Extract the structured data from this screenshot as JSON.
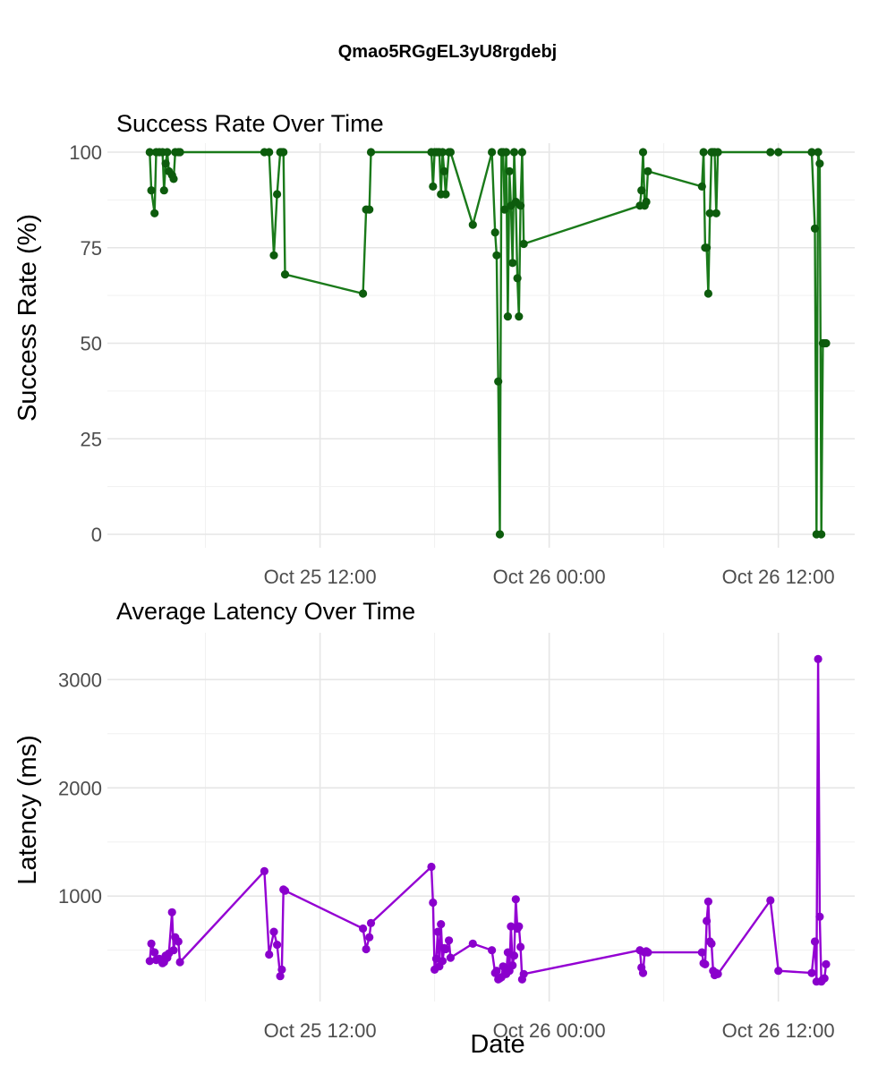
{
  "page": {
    "title": "Qmao5RGgEL3yU8rgdebj"
  },
  "chart_data": [
    {
      "type": "line",
      "title": "Success Rate Over Time",
      "xlabel": "",
      "ylabel": "Success Rate (%)",
      "ylim": [
        0,
        100
      ],
      "yticks": [
        0,
        25,
        50,
        75,
        100
      ],
      "xlim": [
        "2025-10-25 01:20",
        "2025-10-26 16:00"
      ],
      "xticks": [
        {
          "label": "Oct 25 12:00",
          "t": "2025-10-25 12:00"
        },
        {
          "label": "Oct 26 00:00",
          "t": "2025-10-26 00:00"
        },
        {
          "label": "Oct 26 12:00",
          "t": "2025-10-26 12:00"
        }
      ],
      "grid": true,
      "legend": "none",
      "color": "#1a7a1a",
      "point_color": "#0d5c0d",
      "series": [
        {
          "x": [
            "2025-10-25 03:05",
            "2025-10-25 03:10",
            "2025-10-25 03:20",
            "2025-10-25 03:25",
            "2025-10-25 03:35",
            "2025-10-25 03:45",
            "2025-10-25 03:50",
            "2025-10-25 03:55",
            "2025-10-25 04:00",
            "2025-10-25 04:05",
            "2025-10-25 04:15",
            "2025-10-25 04:20",
            "2025-10-25 04:25",
            "2025-10-25 04:35",
            "2025-10-25 04:40",
            "2025-10-25 09:05",
            "2025-10-25 09:20",
            "2025-10-25 09:35",
            "2025-10-25 09:45",
            "2025-10-25 09:55",
            "2025-10-25 10:00",
            "2025-10-25 10:05",
            "2025-10-25 10:10",
            "2025-10-25 14:15",
            "2025-10-25 14:25",
            "2025-10-25 14:35",
            "2025-10-25 14:40",
            "2025-10-25 17:50",
            "2025-10-25 17:55",
            "2025-10-25 18:00",
            "2025-10-25 18:05",
            "2025-10-25 18:10",
            "2025-10-25 18:15",
            "2025-10-25 18:20",
            "2025-10-25 18:25",
            "2025-10-25 18:30",
            "2025-10-25 18:35",
            "2025-10-25 18:45",
            "2025-10-25 18:50",
            "2025-10-25 20:00",
            "2025-10-25 21:00",
            "2025-10-25 21:10",
            "2025-10-25 21:15",
            "2025-10-25 21:20",
            "2025-10-25 21:25",
            "2025-10-25 21:30",
            "2025-10-25 21:35",
            "2025-10-25 21:40",
            "2025-10-25 21:45",
            "2025-10-25 21:50",
            "2025-10-25 21:55",
            "2025-10-25 22:00",
            "2025-10-25 22:05",
            "2025-10-25 22:10",
            "2025-10-25 22:15",
            "2025-10-25 22:20",
            "2025-10-25 22:25",
            "2025-10-25 22:30",
            "2025-10-25 22:35",
            "2025-10-25 22:40",
            "2025-10-26 04:45",
            "2025-10-26 04:50",
            "2025-10-26 04:55",
            "2025-10-26 05:00",
            "2025-10-26 05:05",
            "2025-10-26 05:10",
            "2025-10-26 08:00",
            "2025-10-26 08:05",
            "2025-10-26 08:10",
            "2025-10-26 08:15",
            "2025-10-26 08:20",
            "2025-10-26 08:25",
            "2025-10-26 08:30",
            "2025-10-26 08:35",
            "2025-10-26 08:40",
            "2025-10-26 08:45",
            "2025-10-26 08:50",
            "2025-10-26 11:35",
            "2025-10-26 12:00",
            "2025-10-26 13:45",
            "2025-10-26 13:55",
            "2025-10-26 14:00",
            "2025-10-26 14:05",
            "2025-10-26 14:10",
            "2025-10-26 14:15",
            "2025-10-26 14:20",
            "2025-10-26 14:25",
            "2025-10-26 14:30"
          ],
          "y": [
            100,
            90,
            84,
            100,
            100,
            100,
            90,
            97,
            100,
            95,
            94,
            93,
            100,
            100,
            100,
            100,
            100,
            73,
            89,
            100,
            100,
            100,
            68,
            63,
            85,
            85,
            100,
            100,
            91,
            100,
            100,
            100,
            100,
            89,
            100,
            95,
            89,
            100,
            100,
            81,
            100,
            79,
            73,
            40,
            0,
            100,
            100,
            85,
            100,
            57,
            95,
            86,
            71,
            100,
            87,
            67,
            57,
            86,
            100,
            76,
            86,
            90,
            100,
            86,
            87,
            95,
            91,
            100,
            75,
            75,
            63,
            84,
            100,
            100,
            100,
            84,
            100,
            100,
            100,
            100,
            80,
            0,
            100,
            97,
            0,
            50,
            50,
            50
          ]
        }
      ]
    },
    {
      "type": "line",
      "title": "Average Latency Over Time",
      "xlabel": "Date",
      "ylabel": "Latency (ms)",
      "ylim": [
        150,
        3350
      ],
      "yticks": [
        1000,
        2000,
        3000
      ],
      "xlim": [
        "2025-10-25 01:20",
        "2025-10-26 16:00"
      ],
      "xticks": [
        {
          "label": "Oct 25 12:00",
          "t": "2025-10-25 12:00"
        },
        {
          "label": "Oct 26 00:00",
          "t": "2025-10-26 00:00"
        },
        {
          "label": "Oct 26 12:00",
          "t": "2025-10-26 12:00"
        }
      ],
      "grid": true,
      "legend": "none",
      "color": "#9400d3",
      "point_color": "#8a00cc",
      "series": [
        {
          "x": [
            "2025-10-25 03:05",
            "2025-10-25 03:10",
            "2025-10-25 03:20",
            "2025-10-25 03:25",
            "2025-10-25 03:35",
            "2025-10-25 03:45",
            "2025-10-25 03:50",
            "2025-10-25 03:55",
            "2025-10-25 04:00",
            "2025-10-25 04:05",
            "2025-10-25 04:15",
            "2025-10-25 04:20",
            "2025-10-25 04:25",
            "2025-10-25 04:35",
            "2025-10-25 04:40",
            "2025-10-25 09:05",
            "2025-10-25 09:20",
            "2025-10-25 09:35",
            "2025-10-25 09:45",
            "2025-10-25 09:55",
            "2025-10-25 10:00",
            "2025-10-25 10:05",
            "2025-10-25 10:10",
            "2025-10-25 14:15",
            "2025-10-25 14:25",
            "2025-10-25 14:35",
            "2025-10-25 14:40",
            "2025-10-25 17:50",
            "2025-10-25 17:55",
            "2025-10-25 18:00",
            "2025-10-25 18:05",
            "2025-10-25 18:10",
            "2025-10-25 18:15",
            "2025-10-25 18:20",
            "2025-10-25 18:25",
            "2025-10-25 18:30",
            "2025-10-25 18:35",
            "2025-10-25 18:45",
            "2025-10-25 18:50",
            "2025-10-25 20:00",
            "2025-10-25 21:00",
            "2025-10-25 21:10",
            "2025-10-25 21:15",
            "2025-10-25 21:20",
            "2025-10-25 21:25",
            "2025-10-25 21:30",
            "2025-10-25 21:35",
            "2025-10-25 21:40",
            "2025-10-25 21:45",
            "2025-10-25 21:50",
            "2025-10-25 21:55",
            "2025-10-25 22:00",
            "2025-10-25 22:05",
            "2025-10-25 22:10",
            "2025-10-25 22:15",
            "2025-10-25 22:20",
            "2025-10-25 22:25",
            "2025-10-25 22:30",
            "2025-10-25 22:35",
            "2025-10-25 22:40",
            "2025-10-26 04:45",
            "2025-10-26 04:50",
            "2025-10-26 04:55",
            "2025-10-26 05:00",
            "2025-10-26 05:05",
            "2025-10-26 05:10",
            "2025-10-26 08:00",
            "2025-10-26 08:05",
            "2025-10-26 08:10",
            "2025-10-26 08:15",
            "2025-10-26 08:20",
            "2025-10-26 08:25",
            "2025-10-26 08:30",
            "2025-10-26 08:35",
            "2025-10-26 08:40",
            "2025-10-26 08:45",
            "2025-10-26 08:50",
            "2025-10-26 11:35",
            "2025-10-26 12:00",
            "2025-10-26 13:45",
            "2025-10-26 13:55",
            "2025-10-26 14:00",
            "2025-10-26 14:05",
            "2025-10-26 14:10",
            "2025-10-26 14:15",
            "2025-10-26 14:20",
            "2025-10-26 14:25",
            "2025-10-26 14:30"
          ],
          "y": [
            400,
            560,
            480,
            410,
            420,
            380,
            390,
            450,
            430,
            470,
            850,
            500,
            620,
            580,
            390,
            1230,
            460,
            670,
            550,
            260,
            320,
            1060,
            1050,
            700,
            510,
            620,
            750,
            1270,
            940,
            320,
            420,
            670,
            350,
            740,
            400,
            520,
            510,
            590,
            430,
            560,
            500,
            290,
            310,
            230,
            240,
            250,
            350,
            340,
            280,
            480,
            310,
            720,
            360,
            450,
            970,
            700,
            720,
            530,
            230,
            280,
            500,
            340,
            290,
            480,
            490,
            480,
            480,
            380,
            370,
            770,
            950,
            580,
            560,
            310,
            270,
            290,
            280,
            960,
            310,
            290,
            580,
            210,
            3190,
            810,
            210,
            230,
            240,
            370
          ]
        }
      ]
    }
  ]
}
